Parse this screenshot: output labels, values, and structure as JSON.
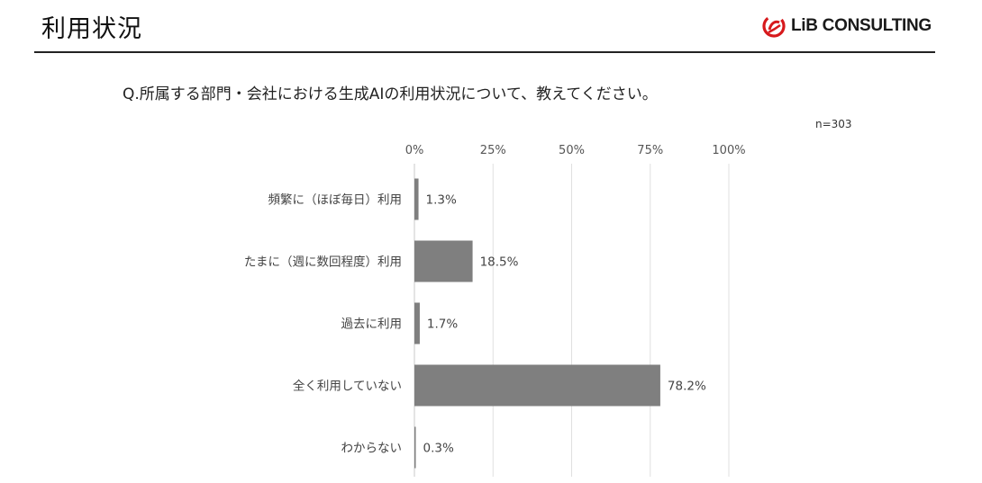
{
  "header": {
    "title": "利用状況",
    "logo_text": "LiB CONSULTING"
  },
  "question": "Q.所属する部門・会社における生成AIの利用状況について、教えてください。",
  "n_label": "n=303",
  "colors": {
    "bar": "#7f7f7f",
    "grid": "#e0e0e0",
    "logo_red": "#d7191c"
  },
  "chart_data": {
    "type": "bar",
    "orientation": "horizontal",
    "categories": [
      "頻繁に（ほぼ毎日）利用",
      "たまに（週に数回程度）利用",
      "過去に利用",
      "全く利用していない",
      "わからない"
    ],
    "values": [
      1.3,
      18.5,
      1.7,
      78.2,
      0.3
    ],
    "value_labels": [
      "1.3%",
      "18.5%",
      "1.7%",
      "78.2%",
      "0.3%"
    ],
    "xlim": [
      0,
      100
    ],
    "ticks": [
      0,
      25,
      50,
      75,
      100
    ],
    "tick_labels": [
      "0%",
      "25%",
      "50%",
      "75%",
      "100%"
    ],
    "grid": true
  }
}
